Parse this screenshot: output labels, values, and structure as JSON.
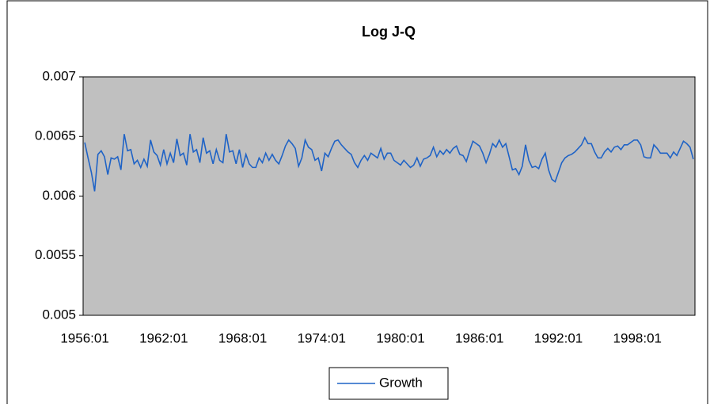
{
  "chart_data": {
    "type": "line",
    "title": "Log J-Q",
    "categories": [
      "1956:01",
      null,
      null,
      null,
      null,
      null,
      null,
      null,
      null,
      null,
      null,
      null,
      null,
      null,
      null,
      null,
      null,
      null,
      null,
      null,
      null,
      null,
      null,
      null,
      "1962:01",
      null,
      null,
      null,
      null,
      null,
      null,
      null,
      null,
      null,
      null,
      null,
      null,
      null,
      null,
      null,
      null,
      null,
      null,
      null,
      null,
      null,
      null,
      null,
      "1968:01",
      null,
      null,
      null,
      null,
      null,
      null,
      null,
      null,
      null,
      null,
      null,
      null,
      null,
      null,
      null,
      null,
      null,
      null,
      null,
      null,
      null,
      null,
      null,
      "1974:01",
      null,
      null,
      null,
      null,
      null,
      null,
      null,
      null,
      null,
      null,
      null,
      null,
      null,
      null,
      null,
      null,
      null,
      null,
      null,
      null,
      null,
      null,
      null,
      "1980:01",
      null,
      null,
      null,
      null,
      null,
      null,
      null,
      null,
      null,
      null,
      null,
      null,
      null,
      null,
      null,
      null,
      null,
      null,
      null,
      null,
      null,
      null,
      null,
      "1986:01",
      null,
      null,
      null,
      null,
      null,
      null,
      null,
      null,
      null,
      null,
      null,
      null,
      null,
      null,
      null,
      null,
      null,
      null,
      null,
      null,
      null,
      null,
      null,
      "1992:01",
      null,
      null,
      null,
      null,
      null,
      null,
      null,
      null,
      null,
      null,
      null,
      null,
      null,
      null,
      null,
      null,
      null,
      null,
      null,
      null,
      null,
      null,
      null,
      "1998:01",
      null,
      null,
      null,
      null,
      null,
      null,
      null,
      null,
      null,
      null,
      null,
      null,
      null,
      null,
      null,
      null,
      null
    ],
    "series": [
      {
        "name": "Growth",
        "color": "#1f63c6",
        "values": [
          0.00645,
          0.00632,
          0.0062,
          0.00604,
          0.00635,
          0.00638,
          0.00633,
          0.00618,
          0.00632,
          0.00631,
          0.00633,
          0.00622,
          0.00652,
          0.00638,
          0.00639,
          0.00627,
          0.0063,
          0.00624,
          0.00631,
          0.00625,
          0.00647,
          0.00637,
          0.00634,
          0.00626,
          0.00639,
          0.00627,
          0.00636,
          0.00628,
          0.00648,
          0.00634,
          0.00636,
          0.00626,
          0.00652,
          0.00637,
          0.00639,
          0.00628,
          0.00649,
          0.00636,
          0.00638,
          0.00627,
          0.00639,
          0.0063,
          0.00628,
          0.00652,
          0.00637,
          0.00638,
          0.00627,
          0.00639,
          0.00624,
          0.00635,
          0.00627,
          0.00624,
          0.00624,
          0.00632,
          0.00628,
          0.00636,
          0.0063,
          0.00635,
          0.0063,
          0.00627,
          0.00634,
          0.00642,
          0.00647,
          0.00644,
          0.0064,
          0.00625,
          0.00632,
          0.00647,
          0.00641,
          0.00639,
          0.0063,
          0.00632,
          0.00621,
          0.00636,
          0.00633,
          0.0064,
          0.00646,
          0.00647,
          0.00643,
          0.0064,
          0.00637,
          0.00635,
          0.00628,
          0.00624,
          0.0063,
          0.00634,
          0.0063,
          0.00636,
          0.00634,
          0.00632,
          0.0064,
          0.00631,
          0.00636,
          0.00636,
          0.0063,
          0.00628,
          0.00626,
          0.0063,
          0.00627,
          0.00624,
          0.00626,
          0.00632,
          0.00625,
          0.00631,
          0.00632,
          0.00634,
          0.00641,
          0.00633,
          0.00638,
          0.00635,
          0.00639,
          0.00636,
          0.0064,
          0.00642,
          0.00635,
          0.00634,
          0.00629,
          0.00638,
          0.00646,
          0.00644,
          0.00642,
          0.00636,
          0.00628,
          0.00635,
          0.00644,
          0.00641,
          0.00647,
          0.00641,
          0.00644,
          0.00633,
          0.00622,
          0.00623,
          0.00618,
          0.00625,
          0.00643,
          0.0063,
          0.00624,
          0.00625,
          0.00623,
          0.00631,
          0.00636,
          0.00622,
          0.00614,
          0.00612,
          0.0062,
          0.00628,
          0.00632,
          0.00634,
          0.00635,
          0.00637,
          0.0064,
          0.00643,
          0.00649,
          0.00644,
          0.00644,
          0.00637,
          0.00632,
          0.00632,
          0.00637,
          0.0064,
          0.00637,
          0.00641,
          0.00642,
          0.00639,
          0.00643,
          0.00643,
          0.00645,
          0.00647,
          0.00647,
          0.00643,
          0.00633,
          0.00632,
          0.00632,
          0.00643,
          0.0064,
          0.00636,
          0.00636,
          0.00636,
          0.00632,
          0.00637,
          0.00634,
          0.0064,
          0.00646,
          0.00644,
          0.00641,
          0.00631
        ]
      }
    ],
    "ylim": [
      0.005,
      0.007
    ],
    "yticks": [
      0.005,
      0.0055,
      0.006,
      0.0065,
      0.007
    ],
    "grid": false,
    "plot_background": "#c0c0c0",
    "legend": "bottom"
  }
}
